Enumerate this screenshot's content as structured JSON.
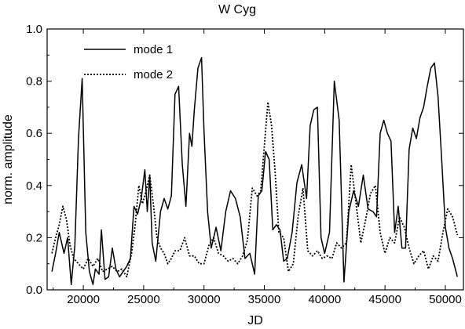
{
  "chart_data": {
    "type": "line",
    "title": "W Cyg",
    "xlabel": "JD",
    "ylabel": "norm. amplitude",
    "xlim": [
      17000,
      51500
    ],
    "ylim": [
      0.0,
      1.0
    ],
    "xticks": [
      20000,
      25000,
      30000,
      35000,
      40000,
      45000,
      50000
    ],
    "xtick_labels": [
      "20000",
      "25000",
      "30000",
      "35000",
      "40000",
      "45000",
      "50000"
    ],
    "yticks": [
      0.0,
      0.2,
      0.4,
      0.6,
      0.8,
      1.0
    ],
    "ytick_labels": [
      "0.0",
      "0.2",
      "0.4",
      "0.6",
      "0.8",
      "1.0"
    ],
    "grid": false,
    "legend_position": "top-left",
    "series": [
      {
        "name": "mode 1",
        "style": "solid",
        "color": "#000000",
        "x": [
          17400,
          17700,
          18000,
          18400,
          18700,
          19000,
          19300,
          19600,
          19900,
          20200,
          20500,
          20800,
          21000,
          21300,
          21500,
          21800,
          22100,
          22400,
          22700,
          23000,
          23300,
          23600,
          23900,
          24200,
          24500,
          24800,
          25100,
          25300,
          25500,
          25700,
          26000,
          26400,
          26700,
          27000,
          27300,
          27600,
          27900,
          28200,
          28500,
          28800,
          29000,
          29200,
          29500,
          29800,
          30000,
          30300,
          30600,
          31000,
          31400,
          31800,
          32200,
          32600,
          33000,
          33400,
          33800,
          34200,
          34500,
          34800,
          35100,
          35400,
          35700,
          36000,
          36300,
          36600,
          36900,
          37300,
          37700,
          38100,
          38500,
          38800,
          39100,
          39400,
          39700,
          40000,
          40400,
          40800,
          41200,
          41600,
          42000,
          42400,
          42800,
          43200,
          43600,
          44000,
          44300,
          44600,
          44900,
          45200,
          45500,
          45800,
          46100,
          46400,
          46700,
          47000,
          47300,
          47600,
          47900,
          48200,
          48500,
          48800,
          49100,
          49400,
          49700,
          50000,
          50300,
          50600,
          51000
        ],
        "y": [
          0.07,
          0.14,
          0.22,
          0.14,
          0.2,
          0.02,
          0.17,
          0.58,
          0.81,
          0.22,
          0.07,
          0.02,
          0.08,
          0.06,
          0.23,
          0.04,
          0.05,
          0.16,
          0.08,
          0.05,
          0.07,
          0.09,
          0.12,
          0.32,
          0.29,
          0.35,
          0.46,
          0.3,
          0.44,
          0.18,
          0.11,
          0.3,
          0.35,
          0.31,
          0.36,
          0.75,
          0.78,
          0.48,
          0.32,
          0.6,
          0.55,
          0.69,
          0.85,
          0.89,
          0.61,
          0.3,
          0.16,
          0.24,
          0.15,
          0.3,
          0.38,
          0.35,
          0.28,
          0.12,
          0.14,
          0.06,
          0.36,
          0.38,
          0.53,
          0.5,
          0.23,
          0.25,
          0.23,
          0.11,
          0.12,
          0.22,
          0.41,
          0.48,
          0.35,
          0.63,
          0.69,
          0.7,
          0.2,
          0.14,
          0.22,
          0.8,
          0.65,
          0.03,
          0.3,
          0.38,
          0.32,
          0.44,
          0.31,
          0.3,
          0.28,
          0.6,
          0.65,
          0.6,
          0.57,
          0.22,
          0.32,
          0.16,
          0.16,
          0.54,
          0.62,
          0.58,
          0.66,
          0.7,
          0.78,
          0.85,
          0.87,
          0.74,
          0.5,
          0.24,
          0.16,
          0.12,
          0.05
        ]
      },
      {
        "name": "mode 2",
        "style": "dotted",
        "color": "#000000",
        "x": [
          17400,
          17700,
          18000,
          18300,
          18600,
          18900,
          19200,
          19600,
          20000,
          20400,
          20800,
          21200,
          21600,
          22000,
          22400,
          22800,
          23200,
          23600,
          24000,
          24300,
          24600,
          24900,
          25200,
          25500,
          25800,
          26100,
          26400,
          26700,
          27000,
          27300,
          27600,
          28000,
          28400,
          28800,
          29200,
          29600,
          30000,
          30400,
          30800,
          31200,
          31600,
          32000,
          32400,
          32800,
          33200,
          33600,
          34000,
          34400,
          34700,
          35000,
          35300,
          35600,
          35900,
          36200,
          36600,
          37000,
          37400,
          37800,
          38200,
          38600,
          39000,
          39400,
          39800,
          40200,
          40600,
          41000,
          41400,
          41800,
          42200,
          42600,
          43000,
          43400,
          43800,
          44200,
          44600,
          45000,
          45400,
          45800,
          46200,
          46600,
          47000,
          47400,
          47800,
          48200,
          48600,
          49000,
          49400,
          49800,
          50200,
          50600,
          51000
        ],
        "y": [
          0.14,
          0.2,
          0.25,
          0.32,
          0.27,
          0.17,
          0.12,
          0.1,
          0.08,
          0.12,
          0.09,
          0.12,
          0.07,
          0.08,
          0.09,
          0.07,
          0.08,
          0.05,
          0.14,
          0.25,
          0.4,
          0.33,
          0.38,
          0.44,
          0.33,
          0.2,
          0.16,
          0.14,
          0.1,
          0.12,
          0.15,
          0.15,
          0.2,
          0.13,
          0.13,
          0.1,
          0.1,
          0.17,
          0.2,
          0.14,
          0.13,
          0.11,
          0.12,
          0.1,
          0.13,
          0.19,
          0.39,
          0.36,
          0.38,
          0.55,
          0.72,
          0.63,
          0.45,
          0.22,
          0.2,
          0.07,
          0.1,
          0.28,
          0.39,
          0.15,
          0.13,
          0.15,
          0.12,
          0.13,
          0.12,
          0.18,
          0.16,
          0.18,
          0.48,
          0.33,
          0.18,
          0.27,
          0.37,
          0.4,
          0.22,
          0.14,
          0.2,
          0.18,
          0.28,
          0.24,
          0.16,
          0.1,
          0.13,
          0.15,
          0.08,
          0.13,
          0.11,
          0.22,
          0.31,
          0.28,
          0.21
        ]
      }
    ]
  }
}
